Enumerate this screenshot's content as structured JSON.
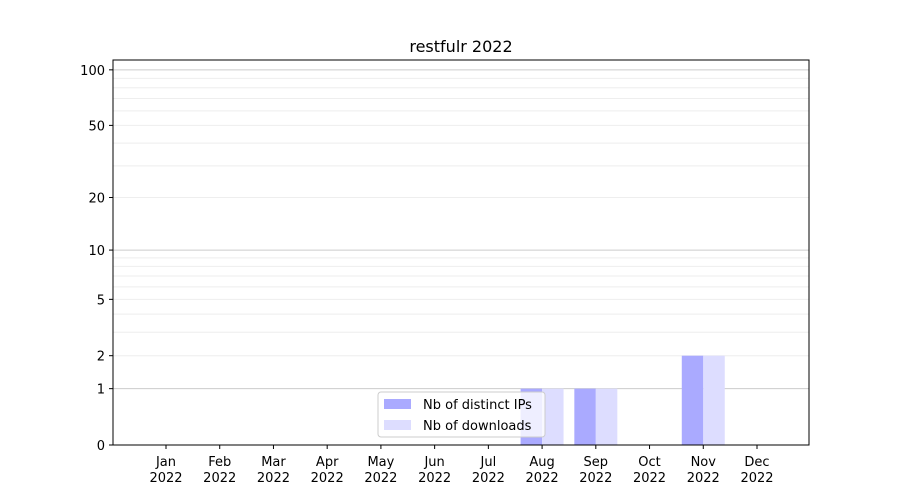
{
  "chart_data": {
    "type": "bar",
    "title": "restfulr 2022",
    "xlabel": "",
    "ylabel": "",
    "y_scale": "log(x+1)",
    "ylim": [
      0,
      113
    ],
    "yticks": [
      0,
      1,
      2,
      5,
      10,
      20,
      50,
      100
    ],
    "ytick_labels": [
      "0",
      "1",
      "2",
      "5",
      "10",
      "20",
      "50",
      "100"
    ],
    "grid": true,
    "legend_position": "lower center",
    "categories": [
      "Jan\n2022",
      "Feb\n2022",
      "Mar\n2022",
      "Apr\n2022",
      "May\n2022",
      "Jun\n2022",
      "Jul\n2022",
      "Aug\n2022",
      "Sep\n2022",
      "Oct\n2022",
      "Nov\n2022",
      "Dec\n2022"
    ],
    "series": [
      {
        "name": "Nb of distinct IPs",
        "color": "#aaaaff",
        "values": [
          0,
          0,
          0,
          0,
          0,
          0,
          0,
          1,
          1,
          0,
          2,
          0
        ]
      },
      {
        "name": "Nb of downloads",
        "color": "#ddddff",
        "values": [
          0,
          0,
          0,
          0,
          0,
          0,
          0,
          1,
          1,
          0,
          2,
          0
        ]
      }
    ]
  }
}
